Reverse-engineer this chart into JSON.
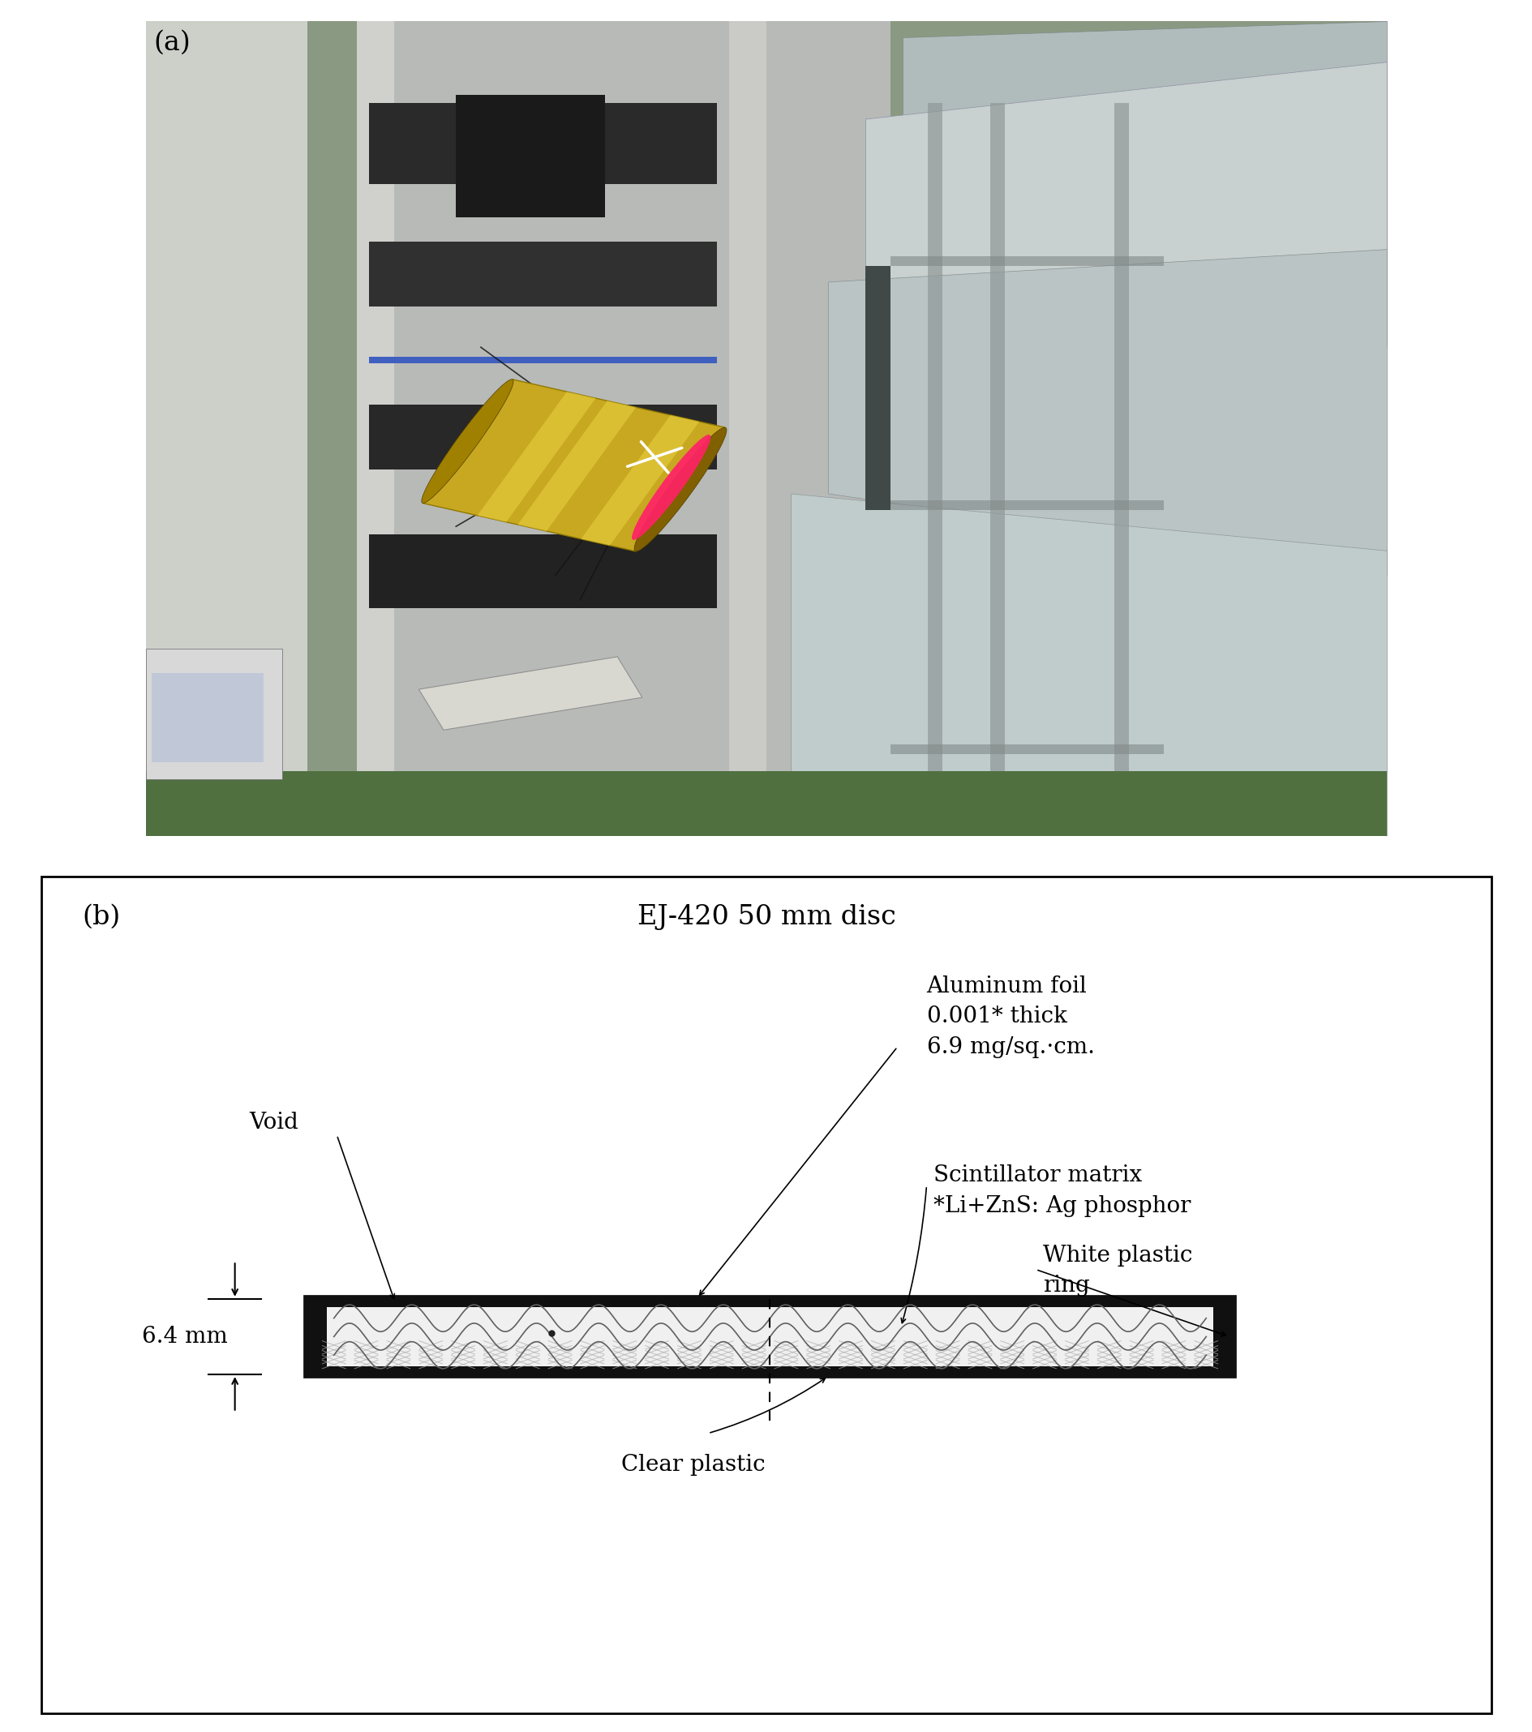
{
  "fig_width": 18.9,
  "fig_height": 21.36,
  "panel_a_label": "(a)",
  "panel_b_label": "(b)",
  "title_b": "EJ-420 50 mm disc",
  "label_void": "Void",
  "label_aluminum": "Aluminum foil\n0.001* thick\n6.9 mg/sq.·cm.",
  "label_scintillator": "Scintillator matrix\n*Li+ZnS: Ag phosphor",
  "label_white_plastic": "White plastic\nring",
  "label_clear_plastic": "Clear plastic",
  "label_6_4mm": "6.4 mm",
  "bg_color": "#ffffff",
  "photo_bg": "#6a7a6a",
  "photo_left_wall": "#b0b8b0",
  "photo_rack_bg": "#a8a8a8",
  "photo_rack_frame": "#c8c8c8",
  "photo_dark_box": "#282828",
  "photo_black_box": "#181818",
  "photo_cylinder_body": "#c8a820",
  "photo_cylinder_dark": "#907800",
  "photo_cylinder_stripe1": "#e8d040",
  "photo_cylinder_stripe2": "#f0e060",
  "photo_pink": "#ff2266",
  "photo_cone_light": "#c8d0d0",
  "photo_cone_mid": "#b0b8b8",
  "photo_cone_dark": "#909898",
  "photo_right_bg": "#7a8a7a",
  "photo_green_floor": "#5a7850",
  "photo_monitor_body": "#d8d8d8",
  "photo_monitor_screen": "#c0c8d8",
  "photo_left_frame": "#d0d0c8",
  "diagram_bg": "#ffffff",
  "det_outer_color": "#101010",
  "det_inner_bg": "#e8e8e8",
  "det_inner_light": "#f0f0f0",
  "det_wave_color": "#606060",
  "det_hatch_color": "#909090",
  "det_dot_color": "#202020",
  "det_dim_line_color": "#000000",
  "border_color": "#000000"
}
